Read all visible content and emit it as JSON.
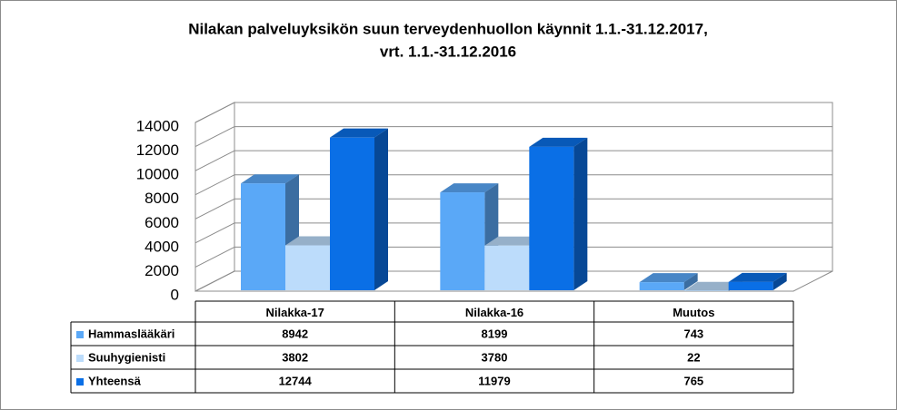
{
  "chart_data": {
    "type": "bar3d",
    "title": [
      "Nilakan palveluyksikön suun terveydenhuollon käynnit 1.1.-31.12.2017,",
      "vrt. 1.1.-31.12.2016"
    ],
    "categories": [
      "Nilakka-17",
      "Nilakka-16",
      "Muutos"
    ],
    "series": [
      {
        "name": "Hammaslääkäri",
        "color": "#5aa8f7",
        "values": [
          8942,
          8199,
          743
        ]
      },
      {
        "name": "Suuhygienisti",
        "color": "#bcdcfb",
        "values": [
          3802,
          3780,
          22
        ]
      },
      {
        "name": "Yhteensä",
        "color": "#0a6fe6",
        "values": [
          12744,
          11979,
          765
        ]
      }
    ],
    "ylim": [
      0,
      14000
    ],
    "yticks": [
      0,
      2000,
      4000,
      6000,
      8000,
      10000,
      12000,
      14000
    ],
    "grid": true
  }
}
